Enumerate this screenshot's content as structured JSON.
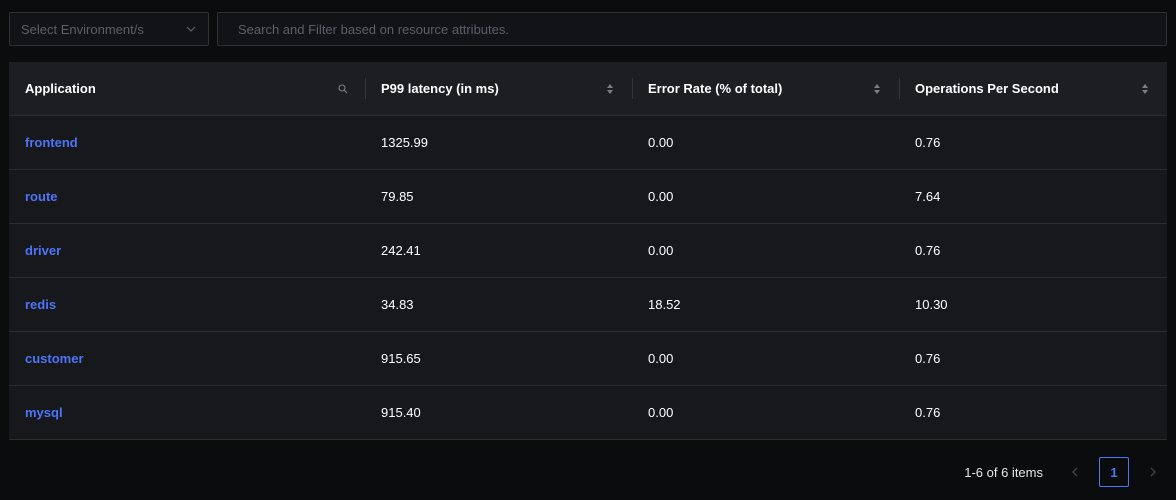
{
  "filters": {
    "environment_placeholder": "Select Environment/s",
    "search_placeholder": "Search and Filter based on resource attributes."
  },
  "table": {
    "columns": [
      {
        "label": "Application"
      },
      {
        "label": "P99 latency (in ms)"
      },
      {
        "label": "Error Rate (% of total)"
      },
      {
        "label": "Operations Per Second"
      }
    ],
    "rows": [
      {
        "application": "frontend",
        "p99": "1325.99",
        "error_rate": "0.00",
        "ops": "0.76"
      },
      {
        "application": "route",
        "p99": "79.85",
        "error_rate": "0.00",
        "ops": "7.64"
      },
      {
        "application": "driver",
        "p99": "242.41",
        "error_rate": "0.00",
        "ops": "0.76"
      },
      {
        "application": "redis",
        "p99": "34.83",
        "error_rate": "18.52",
        "ops": "10.30"
      },
      {
        "application": "customer",
        "p99": "915.65",
        "error_rate": "0.00",
        "ops": "0.76"
      },
      {
        "application": "mysql",
        "p99": "915.40",
        "error_rate": "0.00",
        "ops": "0.76"
      }
    ]
  },
  "pagination": {
    "total_text": "1-6 of 6 items",
    "current_page": "1"
  },
  "colors": {
    "accent": "#4e74f8",
    "background": "#0b0c0e",
    "header_bg": "#1c1e22",
    "row_bg": "#17181c"
  },
  "icons": {
    "environment_dropdown": "chevron-down-icon",
    "application_column": "search-icon",
    "sortable_columns": "sort-icon",
    "prev_page": "chevron-left-icon",
    "next_page": "chevron-right-icon"
  }
}
